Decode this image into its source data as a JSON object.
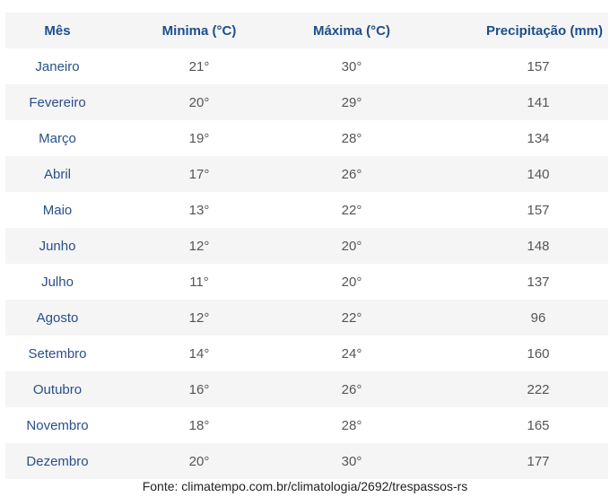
{
  "table": {
    "headers": [
      "Mês",
      "Minima (°C)",
      "Máxima (°C)",
      "Precipitação (mm)"
    ],
    "rows": [
      [
        "Janeiro",
        "21°",
        "30°",
        "157"
      ],
      [
        "Fevereiro",
        "20°",
        "29°",
        "141"
      ],
      [
        "Março",
        "19°",
        "28°",
        "134"
      ],
      [
        "Abril",
        "17°",
        "26°",
        "140"
      ],
      [
        "Maio",
        "13°",
        "22°",
        "157"
      ],
      [
        "Junho",
        "12°",
        "20°",
        "148"
      ],
      [
        "Julho",
        "11°",
        "20°",
        "137"
      ],
      [
        "Agosto",
        "12°",
        "22°",
        "96"
      ],
      [
        "Setembro",
        "14°",
        "24°",
        "160"
      ],
      [
        "Outubro",
        "16°",
        "26°",
        "222"
      ],
      [
        "Novembro",
        "18°",
        "28°",
        "165"
      ],
      [
        "Dezembro",
        "20°",
        "30°",
        "177"
      ]
    ]
  },
  "source": "Fonte: climatempo.com.br/climatologia/2692/trespassos-rs",
  "colors": {
    "header_text": "#1f4d8c",
    "month_text": "#2a4f8a",
    "stripe": "#f5f5f5"
  }
}
